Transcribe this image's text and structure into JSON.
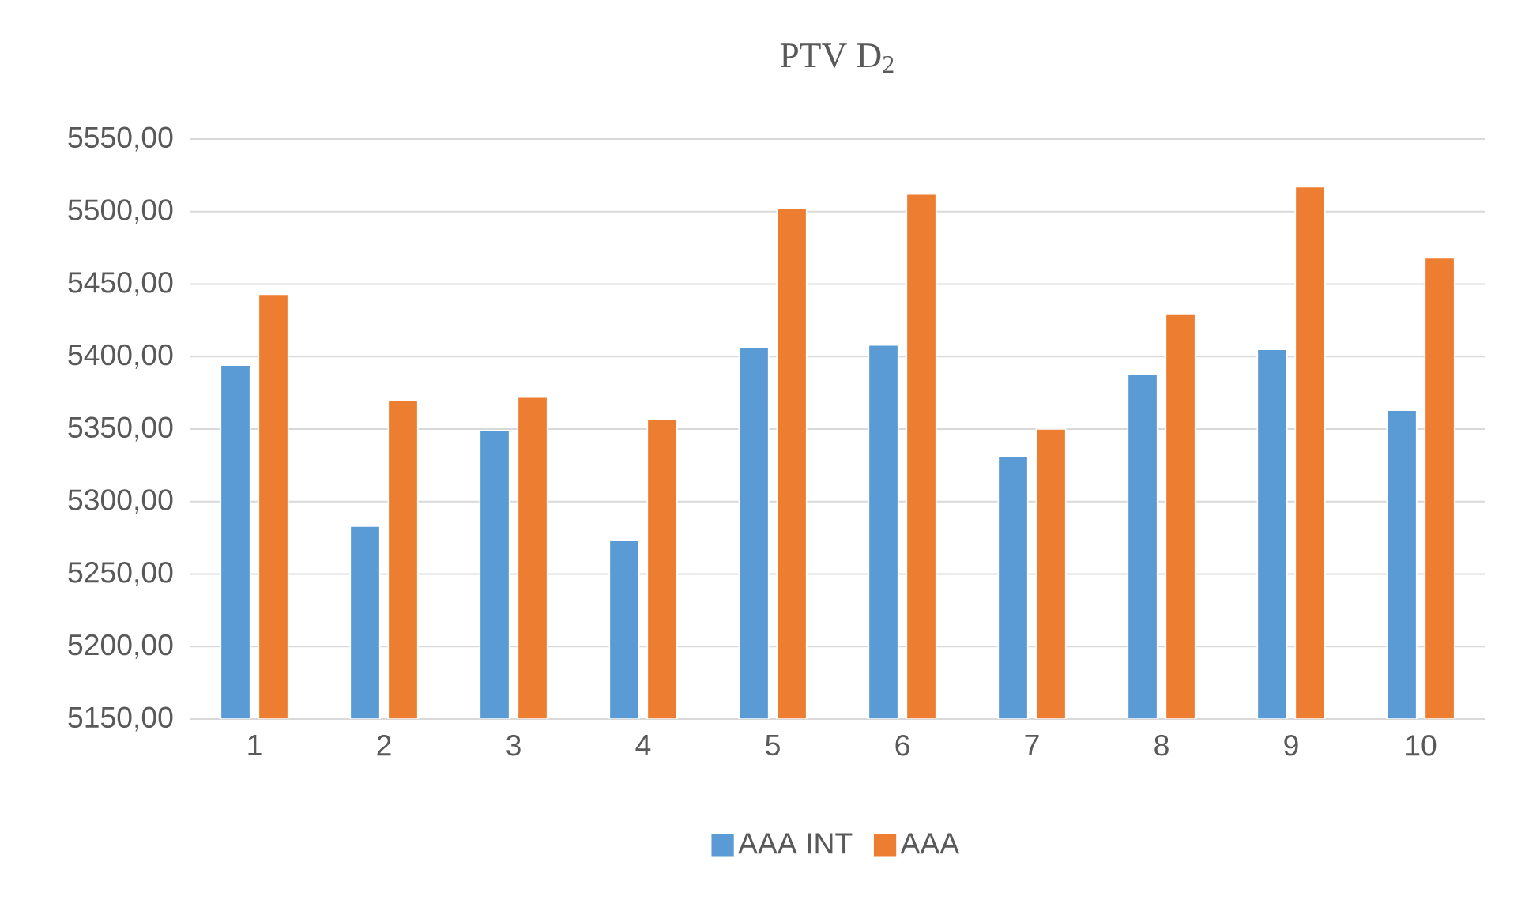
{
  "chart_data": {
    "type": "bar",
    "title": "PTV D$_{2}$",
    "categories": [
      "1",
      "2",
      "3",
      "4",
      "5",
      "6",
      "7",
      "8",
      "9",
      "10"
    ],
    "series": [
      {
        "name": "AAA INT",
        "color": "#5b9bd5",
        "values": [
          5394,
          5283,
          5349,
          5273,
          5406,
          5408,
          5331,
          5388,
          5405,
          5363
        ]
      },
      {
        "name": "AAA",
        "color": "#ed7d31",
        "values": [
          5443,
          5370,
          5372,
          5357,
          5502,
          5512,
          5350,
          5429,
          5517,
          5468
        ]
      }
    ],
    "ylim": [
      5150,
      5550
    ],
    "yticks": [
      {
        "value": 5150,
        "label": "5150,00"
      },
      {
        "value": 5200,
        "label": "5200,00"
      },
      {
        "value": 5250,
        "label": "5250,00"
      },
      {
        "value": 5300,
        "label": "5300,00"
      },
      {
        "value": 5350,
        "label": "5350,00"
      },
      {
        "value": 5400,
        "label": "5400,00"
      },
      {
        "value": 5450,
        "label": "5450,00"
      },
      {
        "value": 5500,
        "label": "5500,00"
      },
      {
        "value": 5550,
        "label": "5550,00"
      }
    ],
    "grid": "y",
    "legend": "bottom"
  }
}
